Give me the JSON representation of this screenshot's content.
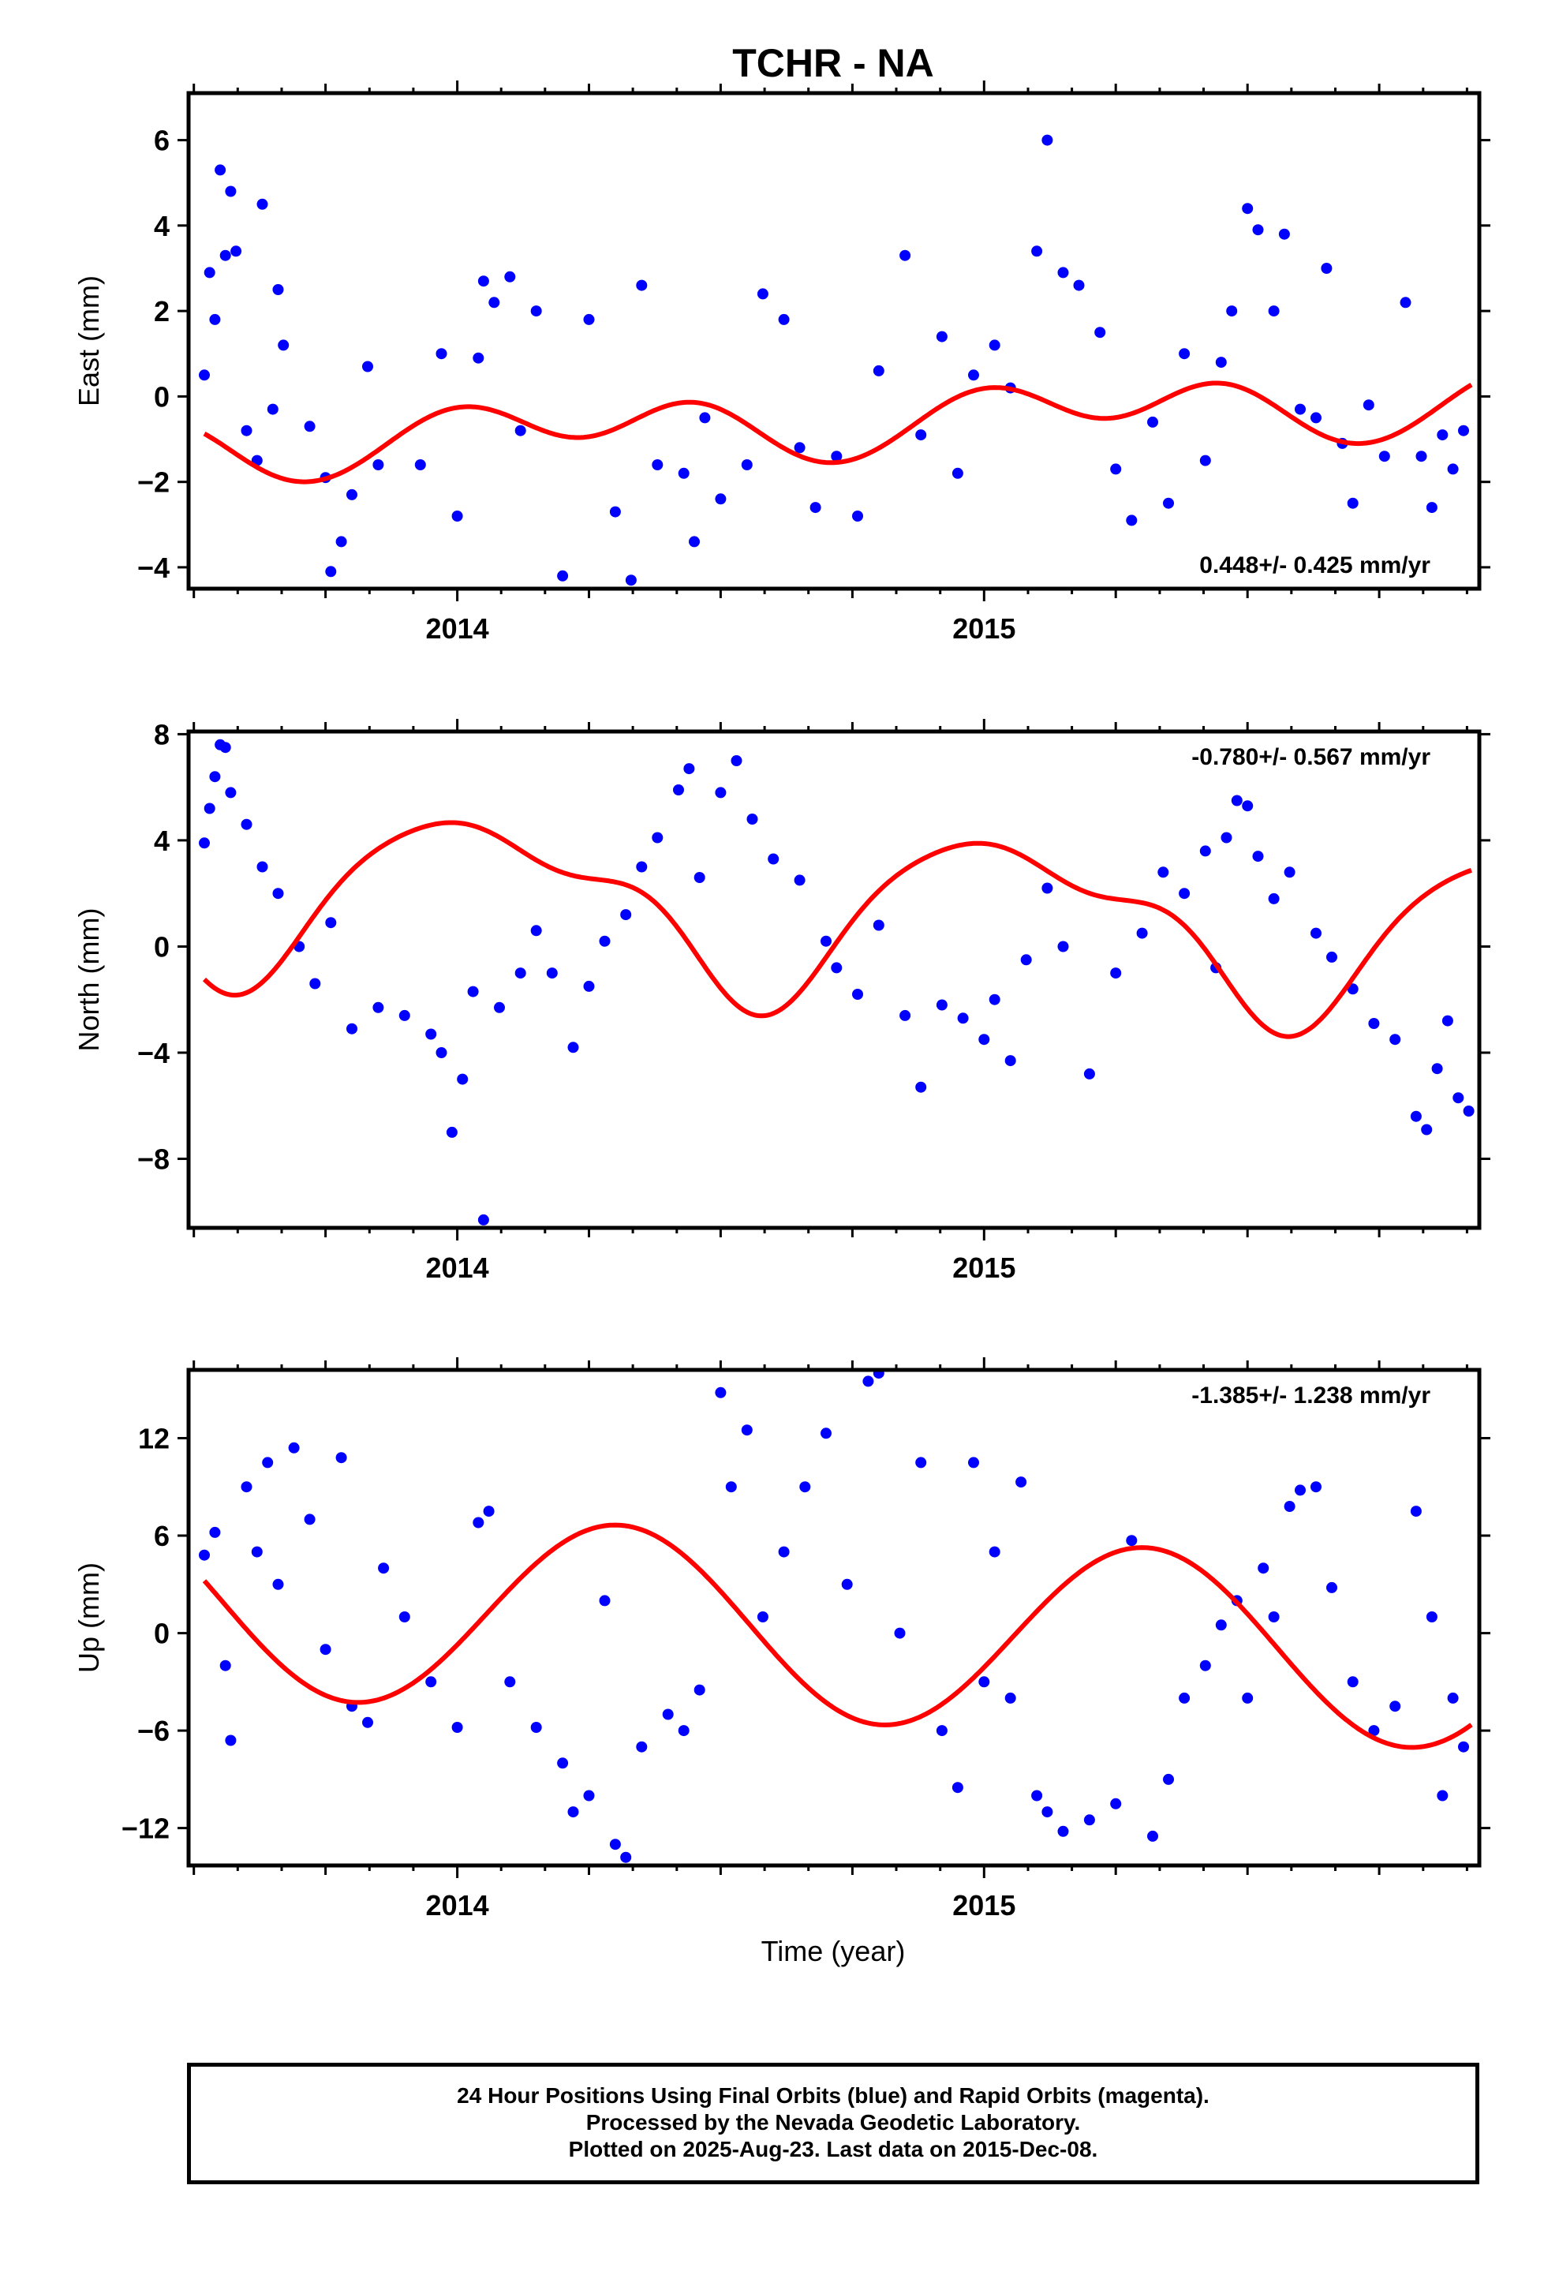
{
  "title": "TCHR - NA",
  "footer": {
    "line1": "24 Hour Positions Using Final Orbits (blue) and Rapid Orbits (magenta).",
    "line2": "Processed by the Nevada Geodetic Laboratory.",
    "line3": "Plotted on 2025-Aug-23. Last data on 2015-Dec-08."
  },
  "colors": {
    "data_points": "#0000ff",
    "fit_curve": "#ff0000",
    "axes": "#000000"
  },
  "chart_data": [
    {
      "type": "scatter",
      "ylabel": "East (mm)",
      "xlabel": "",
      "rate_label": "0.448+/- 0.425 mm/yr",
      "rate_position": "bottom-right",
      "xlim": [
        2013.49,
        2015.94
      ],
      "ylim": [
        -4.5,
        7.1
      ],
      "yticks": [
        -4,
        -2,
        0,
        2,
        4,
        6
      ],
      "xticks": [
        2014,
        2015
      ],
      "grid": false,
      "fit": {
        "trend": 0.448,
        "offset": -0.6,
        "a1": 0.45,
        "p1": 0.3,
        "a2": 0.55,
        "p2": 1.9,
        "a3": 0.05,
        "p3": 0.0
      },
      "series": [
        {
          "values": [
            [
              2013.52,
              0.5
            ],
            [
              2013.53,
              2.9
            ],
            [
              2013.54,
              1.8
            ],
            [
              2013.55,
              5.3
            ],
            [
              2013.56,
              3.3
            ],
            [
              2013.57,
              4.8
            ],
            [
              2013.58,
              3.4
            ],
            [
              2013.6,
              -0.8
            ],
            [
              2013.62,
              -1.5
            ],
            [
              2013.63,
              4.5
            ],
            [
              2013.65,
              -0.3
            ],
            [
              2013.66,
              2.5
            ],
            [
              2013.67,
              1.2
            ],
            [
              2013.72,
              -0.7
            ],
            [
              2013.75,
              -1.9
            ],
            [
              2013.76,
              -4.1
            ],
            [
              2013.78,
              -3.4
            ],
            [
              2013.8,
              -2.3
            ],
            [
              2013.83,
              0.7
            ],
            [
              2013.85,
              -1.6
            ],
            [
              2013.93,
              -1.6
            ],
            [
              2013.97,
              1.0
            ],
            [
              2014.0,
              -2.8
            ],
            [
              2014.04,
              0.9
            ],
            [
              2014.05,
              2.7
            ],
            [
              2014.07,
              2.2
            ],
            [
              2014.1,
              2.8
            ],
            [
              2014.12,
              -0.8
            ],
            [
              2014.15,
              2.0
            ],
            [
              2014.2,
              -4.2
            ],
            [
              2014.25,
              1.8
            ],
            [
              2014.3,
              -2.7
            ],
            [
              2014.33,
              -4.3
            ],
            [
              2014.35,
              2.6
            ],
            [
              2014.38,
              -1.6
            ],
            [
              2014.43,
              -1.8
            ],
            [
              2014.45,
              -3.4
            ],
            [
              2014.47,
              -0.5
            ],
            [
              2014.5,
              -2.4
            ],
            [
              2014.55,
              -1.6
            ],
            [
              2014.58,
              2.4
            ],
            [
              2014.62,
              1.8
            ],
            [
              2014.65,
              -1.2
            ],
            [
              2014.68,
              -2.6
            ],
            [
              2014.72,
              -1.4
            ],
            [
              2014.76,
              -2.8
            ],
            [
              2014.8,
              0.6
            ],
            [
              2014.85,
              3.3
            ],
            [
              2014.88,
              -0.9
            ],
            [
              2014.92,
              1.4
            ],
            [
              2014.95,
              -1.8
            ],
            [
              2014.98,
              0.5
            ],
            [
              2015.02,
              1.2
            ],
            [
              2015.05,
              0.2
            ],
            [
              2015.1,
              3.4
            ],
            [
              2015.12,
              6.0
            ],
            [
              2015.15,
              2.9
            ],
            [
              2015.18,
              2.6
            ],
            [
              2015.22,
              1.5
            ],
            [
              2015.25,
              -1.7
            ],
            [
              2015.28,
              -2.9
            ],
            [
              2015.32,
              -0.6
            ],
            [
              2015.35,
              -2.5
            ],
            [
              2015.38,
              1.0
            ],
            [
              2015.42,
              -1.5
            ],
            [
              2015.45,
              0.8
            ],
            [
              2015.47,
              2.0
            ],
            [
              2015.5,
              4.4
            ],
            [
              2015.52,
              3.9
            ],
            [
              2015.55,
              2.0
            ],
            [
              2015.57,
              3.8
            ],
            [
              2015.6,
              -0.3
            ],
            [
              2015.63,
              -0.5
            ],
            [
              2015.65,
              3.0
            ],
            [
              2015.68,
              -1.1
            ],
            [
              2015.7,
              -2.5
            ],
            [
              2015.73,
              -0.2
            ],
            [
              2015.76,
              -1.4
            ],
            [
              2015.8,
              2.2
            ],
            [
              2015.83,
              -1.4
            ],
            [
              2015.85,
              -2.6
            ],
            [
              2015.87,
              -0.9
            ],
            [
              2015.89,
              -1.7
            ],
            [
              2015.91,
              -0.8
            ]
          ]
        }
      ]
    },
    {
      "type": "scatter",
      "ylabel": "North (mm)",
      "xlabel": "",
      "rate_label": "-0.780+/- 0.567 mm/yr",
      "rate_position": "top-right",
      "xlim": [
        2013.49,
        2015.94
      ],
      "ylim": [
        -10.6,
        8.1
      ],
      "yticks": [
        -8,
        -4,
        0,
        4,
        8
      ],
      "xticks": [
        2014,
        2015
      ],
      "grid": false,
      "fit": {
        "trend": -0.78,
        "offset": 1.4,
        "a1": 2.9,
        "p1": 1.25,
        "a2": 1.0,
        "p2": 3.35,
        "a3": 0.35,
        "p3": 0.5
      },
      "series": [
        {
          "values": [
            [
              2013.52,
              3.9
            ],
            [
              2013.53,
              5.2
            ],
            [
              2013.54,
              6.4
            ],
            [
              2013.55,
              7.6
            ],
            [
              2013.56,
              7.5
            ],
            [
              2013.57,
              5.8
            ],
            [
              2013.6,
              4.6
            ],
            [
              2013.63,
              3.0
            ],
            [
              2013.66,
              2.0
            ],
            [
              2013.7,
              0.0
            ],
            [
              2013.73,
              -1.4
            ],
            [
              2013.76,
              0.9
            ],
            [
              2013.8,
              -3.1
            ],
            [
              2013.85,
              -2.3
            ],
            [
              2013.9,
              -2.6
            ],
            [
              2013.95,
              -3.3
            ],
            [
              2013.97,
              -4.0
            ],
            [
              2013.99,
              -7.0
            ],
            [
              2014.01,
              -5.0
            ],
            [
              2014.03,
              -1.7
            ],
            [
              2014.05,
              -10.3
            ],
            [
              2014.08,
              -2.3
            ],
            [
              2014.12,
              -1.0
            ],
            [
              2014.15,
              0.6
            ],
            [
              2014.18,
              -1.0
            ],
            [
              2014.22,
              -3.8
            ],
            [
              2014.25,
              -1.5
            ],
            [
              2014.28,
              0.2
            ],
            [
              2014.32,
              1.2
            ],
            [
              2014.35,
              3.0
            ],
            [
              2014.38,
              4.1
            ],
            [
              2014.42,
              5.9
            ],
            [
              2014.44,
              6.7
            ],
            [
              2014.46,
              2.6
            ],
            [
              2014.5,
              5.8
            ],
            [
              2014.53,
              7.0
            ],
            [
              2014.56,
              4.8
            ],
            [
              2014.6,
              3.3
            ],
            [
              2014.65,
              2.5
            ],
            [
              2014.7,
              0.2
            ],
            [
              2014.72,
              -0.8
            ],
            [
              2014.76,
              -1.8
            ],
            [
              2014.8,
              0.8
            ],
            [
              2014.85,
              -2.6
            ],
            [
              2014.88,
              -5.3
            ],
            [
              2014.92,
              -2.2
            ],
            [
              2014.96,
              -2.7
            ],
            [
              2015.0,
              -3.5
            ],
            [
              2015.02,
              -2.0
            ],
            [
              2015.05,
              -4.3
            ],
            [
              2015.08,
              -0.5
            ],
            [
              2015.12,
              2.2
            ],
            [
              2015.15,
              0.0
            ],
            [
              2015.2,
              -4.8
            ],
            [
              2015.25,
              -1.0
            ],
            [
              2015.3,
              0.5
            ],
            [
              2015.34,
              2.8
            ],
            [
              2015.38,
              2.0
            ],
            [
              2015.42,
              3.6
            ],
            [
              2015.44,
              -0.8
            ],
            [
              2015.46,
              4.1
            ],
            [
              2015.48,
              5.5
            ],
            [
              2015.5,
              5.3
            ],
            [
              2015.52,
              3.4
            ],
            [
              2015.55,
              1.8
            ],
            [
              2015.58,
              2.8
            ],
            [
              2015.63,
              0.5
            ],
            [
              2015.66,
              -0.4
            ],
            [
              2015.7,
              -1.6
            ],
            [
              2015.74,
              -2.9
            ],
            [
              2015.78,
              -3.5
            ],
            [
              2015.82,
              -6.4
            ],
            [
              2015.84,
              -6.9
            ],
            [
              2015.86,
              -4.6
            ],
            [
              2015.88,
              -2.8
            ],
            [
              2015.9,
              -5.7
            ],
            [
              2015.92,
              -6.2
            ]
          ]
        }
      ]
    },
    {
      "type": "scatter",
      "ylabel": "Up (mm)",
      "xlabel": "Time (year)",
      "rate_label": "-1.385+/- 1.238 mm/yr",
      "rate_position": "top-right",
      "xlim": [
        2013.49,
        2015.94
      ],
      "ylim": [
        -14.3,
        16.2
      ],
      "yticks": [
        -12,
        -6,
        0,
        6,
        12
      ],
      "xticks": [
        2014,
        2015
      ],
      "grid": false,
      "fit": {
        "trend": -1.385,
        "offset": 0.3,
        "a1": 5.8,
        "p1": -0.35,
        "a2": 0.0,
        "p2": 0.0,
        "a3": 0.0,
        "p3": 0.0
      },
      "series": [
        {
          "values": [
            [
              2013.52,
              4.8
            ],
            [
              2013.54,
              6.2
            ],
            [
              2013.56,
              -2.0
            ],
            [
              2013.57,
              -6.6
            ],
            [
              2013.6,
              9.0
            ],
            [
              2013.62,
              5.0
            ],
            [
              2013.64,
              10.5
            ],
            [
              2013.66,
              3.0
            ],
            [
              2013.69,
              11.4
            ],
            [
              2013.72,
              7.0
            ],
            [
              2013.75,
              -1.0
            ],
            [
              2013.78,
              10.8
            ],
            [
              2013.8,
              -4.5
            ],
            [
              2013.83,
              -5.5
            ],
            [
              2013.86,
              4.0
            ],
            [
              2013.9,
              1.0
            ],
            [
              2013.95,
              -3.0
            ],
            [
              2014.0,
              -5.8
            ],
            [
              2014.04,
              6.8
            ],
            [
              2014.06,
              7.5
            ],
            [
              2014.1,
              -3.0
            ],
            [
              2014.15,
              -5.8
            ],
            [
              2014.2,
              -8.0
            ],
            [
              2014.22,
              -11.0
            ],
            [
              2014.25,
              -10.0
            ],
            [
              2014.28,
              2.0
            ],
            [
              2014.3,
              -13.0
            ],
            [
              2014.32,
              -13.8
            ],
            [
              2014.35,
              -7.0
            ],
            [
              2014.4,
              -5.0
            ],
            [
              2014.43,
              -6.0
            ],
            [
              2014.46,
              -3.5
            ],
            [
              2014.5,
              14.8
            ],
            [
              2014.52,
              9.0
            ],
            [
              2014.55,
              12.5
            ],
            [
              2014.58,
              1.0
            ],
            [
              2014.62,
              5.0
            ],
            [
              2014.66,
              9.0
            ],
            [
              2014.7,
              12.3
            ],
            [
              2014.74,
              3.0
            ],
            [
              2014.78,
              15.5
            ],
            [
              2014.8,
              16.0
            ],
            [
              2014.84,
              0.0
            ],
            [
              2014.88,
              10.5
            ],
            [
              2014.92,
              -6.0
            ],
            [
              2014.95,
              -9.5
            ],
            [
              2014.98,
              10.5
            ],
            [
              2015.0,
              -3.0
            ],
            [
              2015.02,
              5.0
            ],
            [
              2015.05,
              -4.0
            ],
            [
              2015.07,
              9.3
            ],
            [
              2015.1,
              -10.0
            ],
            [
              2015.12,
              -11.0
            ],
            [
              2015.15,
              -12.2
            ],
            [
              2015.2,
              -11.5
            ],
            [
              2015.25,
              -10.5
            ],
            [
              2015.28,
              5.7
            ],
            [
              2015.32,
              -12.5
            ],
            [
              2015.35,
              -9.0
            ],
            [
              2015.38,
              -4.0
            ],
            [
              2015.42,
              -2.0
            ],
            [
              2015.45,
              0.5
            ],
            [
              2015.48,
              2.0
            ],
            [
              2015.5,
              -4.0
            ],
            [
              2015.53,
              4.0
            ],
            [
              2015.55,
              1.0
            ],
            [
              2015.58,
              7.8
            ],
            [
              2015.6,
              8.8
            ],
            [
              2015.63,
              9.0
            ],
            [
              2015.66,
              2.8
            ],
            [
              2015.7,
              -3.0
            ],
            [
              2015.74,
              -6.0
            ],
            [
              2015.78,
              -4.5
            ],
            [
              2015.82,
              7.5
            ],
            [
              2015.85,
              1.0
            ],
            [
              2015.87,
              -10.0
            ],
            [
              2015.89,
              -4.0
            ],
            [
              2015.91,
              -7.0
            ]
          ]
        }
      ]
    }
  ]
}
